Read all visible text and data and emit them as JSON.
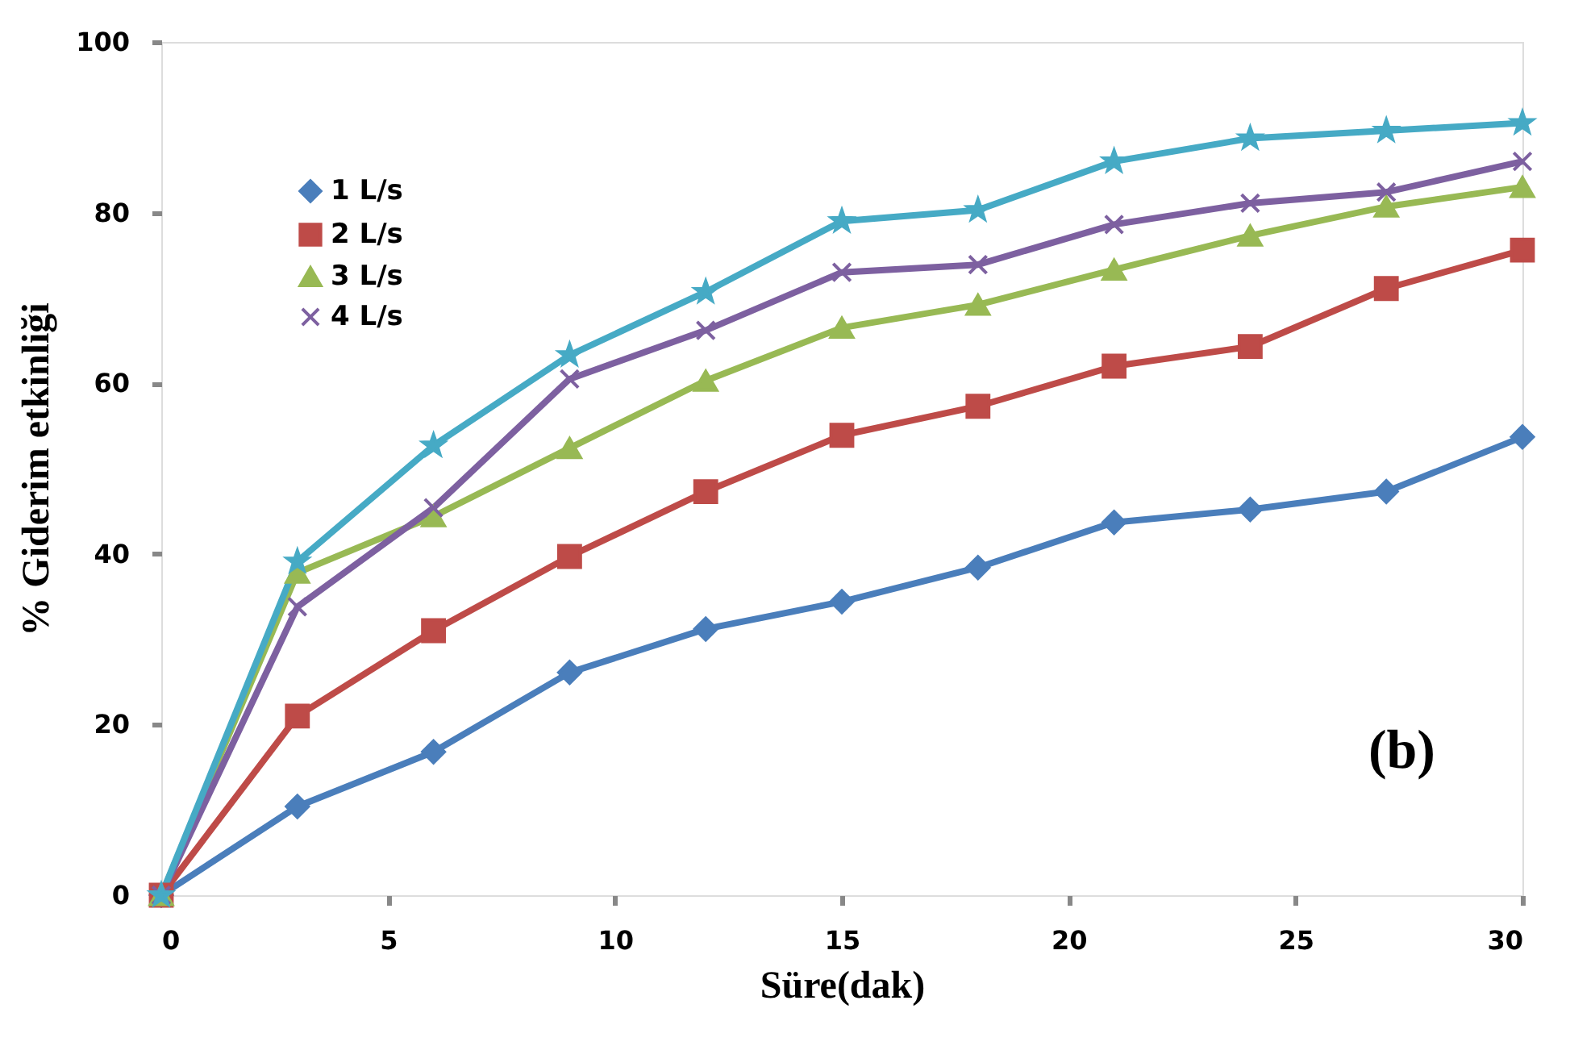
{
  "chart_data": {
    "type": "line",
    "xlabel": "Süre(dak)",
    "ylabel": "% Giderim etkinliği",
    "x": [
      0,
      3,
      6,
      9,
      12,
      15,
      18,
      21,
      24,
      27,
      30
    ],
    "series": [
      {
        "name": "1 L/s",
        "color": "#4a7ebb",
        "marker": "diamond",
        "values": [
          0,
          10.4,
          16.8,
          26.1,
          31.2,
          34.4,
          38.4,
          43.7,
          45.2,
          47.3,
          53.7
        ]
      },
      {
        "name": "2 L/s",
        "color": "#be4b48",
        "marker": "square",
        "values": [
          0,
          21,
          31,
          39.7,
          47.3,
          53.9,
          57.3,
          62,
          64.3,
          71.1,
          75.6
        ]
      },
      {
        "name": "3 L/s",
        "color": "#98b954",
        "marker": "triangle",
        "values": [
          0,
          37.8,
          44.4,
          52.4,
          60.3,
          66.5,
          69.2,
          73.3,
          77.3,
          80.7,
          83
        ]
      },
      {
        "name": "4 L/s",
        "color": "#7d60a0",
        "marker": "cross",
        "values": [
          0,
          33.8,
          45.4,
          60.5,
          66.2,
          73,
          73.9,
          78.6,
          81.1,
          82.4,
          86
        ]
      },
      {
        "color": "#46aac5",
        "marker": "star",
        "values": [
          0,
          39.1,
          52.7,
          63.3,
          70.7,
          79,
          80.3,
          86,
          88.7,
          89.6,
          90.5
        ]
      }
    ],
    "xlim": [
      0,
      30
    ],
    "xticks": [
      0,
      5,
      10,
      15,
      20,
      25,
      30
    ],
    "ylim": [
      0,
      100
    ],
    "yticks": [
      0,
      20,
      40,
      60,
      80,
      100
    ],
    "grid": false,
    "legend": "top left",
    "line_style": "solid",
    "annotations": [
      "(b)"
    ]
  }
}
